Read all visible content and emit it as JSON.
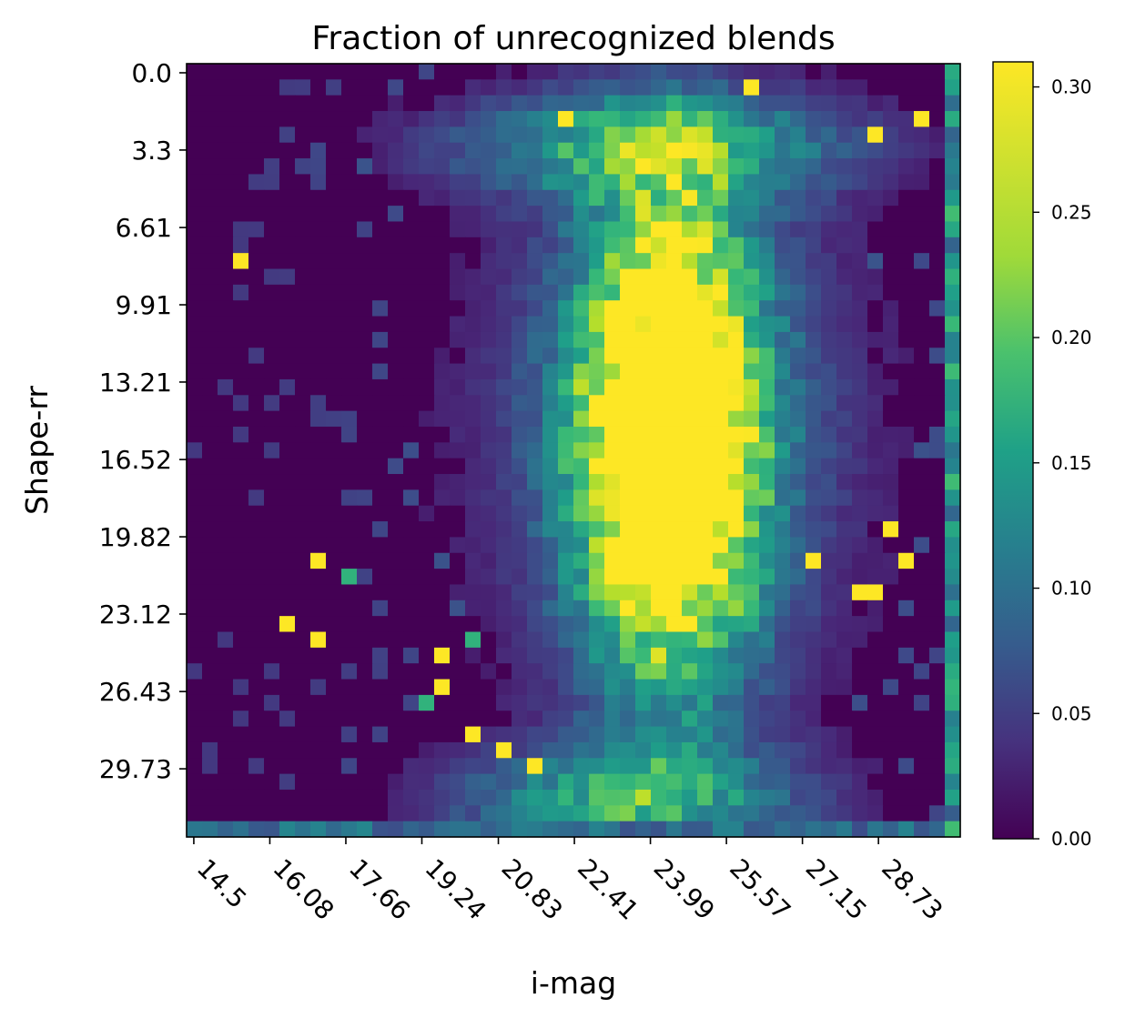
{
  "chart_data": {
    "type": "heatmap",
    "title": "Fraction of unrecognized blends",
    "xlabel": "i-mag",
    "ylabel": "Shape-rr",
    "x_tick_labels": [
      "14.5",
      "16.08",
      "17.66",
      "19.24",
      "20.83",
      "22.41",
      "23.99",
      "25.57",
      "27.15",
      "28.73"
    ],
    "x_range": [
      14.35,
      30.43
    ],
    "y_tick_labels": [
      "0.0",
      "3.3",
      "6.61",
      "9.91",
      "13.21",
      "16.52",
      "19.82",
      "23.12",
      "26.43",
      "29.73"
    ],
    "y_range": [
      0.0,
      33.03
    ],
    "n_x_bins": 50,
    "n_y_bins": 49,
    "colorbar": {
      "min": 0.0,
      "max": 0.31,
      "tick_labels": [
        "0.00",
        "0.05",
        "0.10",
        "0.15",
        "0.20",
        "0.25",
        "0.30"
      ],
      "colormap": "viridis"
    },
    "values_estimated": {
      "core": {
        "x_center": 24.4,
        "y_center": 16.0,
        "x_sigma": 1.3,
        "y_sigma": 7.0,
        "peak": 0.31
      },
      "upper_band": {
        "y_center": 3.5,
        "level": 0.16
      },
      "lower_band": {
        "y_center": 31.5,
        "level": 0.17
      },
      "last_row_level": 0.12,
      "last_column_level": 0.18,
      "isolated_cells": [
        {
          "x": 15.5,
          "y": 8.6,
          "v": 0.31
        },
        {
          "x": 17.2,
          "y": 21.5,
          "v": 0.31
        },
        {
          "x": 17.7,
          "y": 22.1,
          "v": 0.2
        },
        {
          "x": 16.6,
          "y": 23.8,
          "v": 0.31
        },
        {
          "x": 17.0,
          "y": 24.5,
          "v": 0.31
        },
        {
          "x": 20.2,
          "y": 24.5,
          "v": 0.2
        },
        {
          "x": 19.5,
          "y": 25.2,
          "v": 0.31
        },
        {
          "x": 19.5,
          "y": 26.6,
          "v": 0.31
        },
        {
          "x": 19.2,
          "y": 27.3,
          "v": 0.2
        },
        {
          "x": 20.2,
          "y": 28.7,
          "v": 0.31
        },
        {
          "x": 20.9,
          "y": 29.4,
          "v": 0.31
        },
        {
          "x": 21.6,
          "y": 30.1,
          "v": 0.31
        },
        {
          "x": 27.4,
          "y": 21.5,
          "v": 0.31
        },
        {
          "x": 28.2,
          "y": 22.8,
          "v": 0.31
        },
        {
          "x": 28.6,
          "y": 22.8,
          "v": 0.31
        },
        {
          "x": 29.3,
          "y": 21.0,
          "v": 0.31
        },
        {
          "x": 29.0,
          "y": 19.6,
          "v": 0.31
        },
        {
          "x": 28.6,
          "y": 3.0,
          "v": 0.31
        },
        {
          "x": 29.7,
          "y": 2.1,
          "v": 0.31
        },
        {
          "x": 22.1,
          "y": 2.1,
          "v": 0.31
        },
        {
          "x": 26.2,
          "y": 0.7,
          "v": 0.31
        }
      ]
    }
  }
}
